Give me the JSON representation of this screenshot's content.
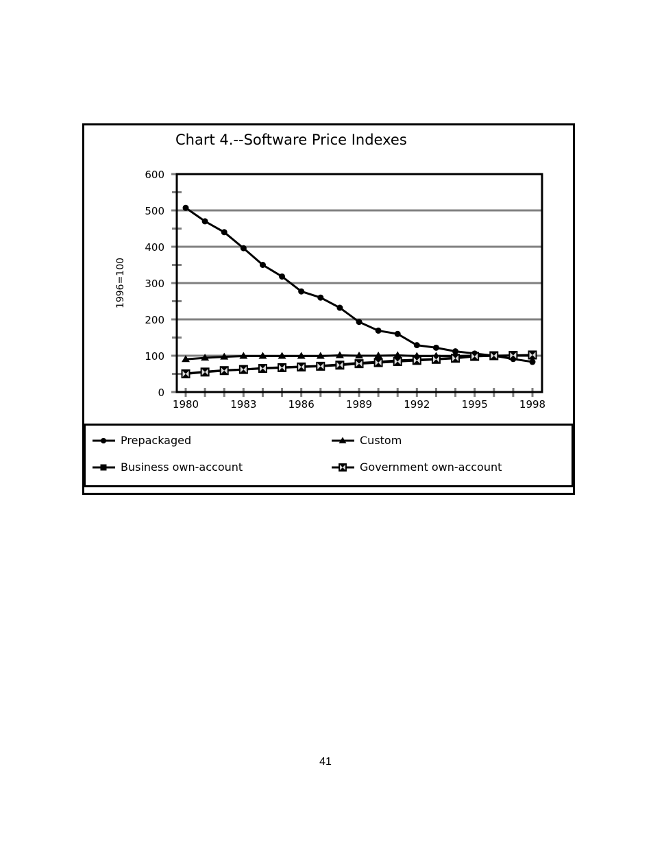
{
  "page": {
    "number": "41"
  },
  "chart_data": {
    "type": "line",
    "title": "Chart 4.--Software Price Indexes",
    "xlabel": "",
    "ylabel": "1996=100",
    "x": [
      1980,
      1981,
      1982,
      1983,
      1984,
      1985,
      1986,
      1987,
      1988,
      1989,
      1990,
      1991,
      1992,
      1993,
      1994,
      1995,
      1996,
      1997,
      1998
    ],
    "x_tick_labels": [
      "1980",
      "1983",
      "1986",
      "1989",
      "1992",
      "1995",
      "1998"
    ],
    "y_tick_labels": [
      "0",
      "100",
      "200",
      "300",
      "400",
      "500",
      "600"
    ],
    "ylim": [
      0,
      600
    ],
    "xlim": [
      1980,
      1998
    ],
    "grid": true,
    "legend_position": "bottom",
    "series": [
      {
        "name": "Prepackaged",
        "marker": "circle",
        "values": [
          507,
          470,
          440,
          396,
          350,
          318,
          277,
          260,
          232,
          193,
          169,
          160,
          129,
          122,
          112,
          106,
          100,
          91,
          83
        ]
      },
      {
        "name": "Custom",
        "marker": "triangle",
        "values": [
          90,
          94,
          97,
          99,
          99,
          99,
          99,
          99,
          101,
          100,
          100,
          101,
          99,
          99,
          99,
          100,
          100,
          100,
          100
        ]
      },
      {
        "name": "Business own-account",
        "marker": "square",
        "values": [
          51,
          56,
          60,
          62,
          66,
          68,
          70,
          72,
          76,
          80,
          83,
          87,
          89,
          91,
          94,
          99,
          100,
          100,
          101
        ]
      },
      {
        "name": "Government own-account",
        "marker": "hourglass",
        "values": [
          50,
          55,
          59,
          62,
          65,
          67,
          69,
          71,
          74,
          78,
          81,
          84,
          87,
          90,
          93,
          98,
          100,
          101,
          102
        ]
      }
    ]
  }
}
